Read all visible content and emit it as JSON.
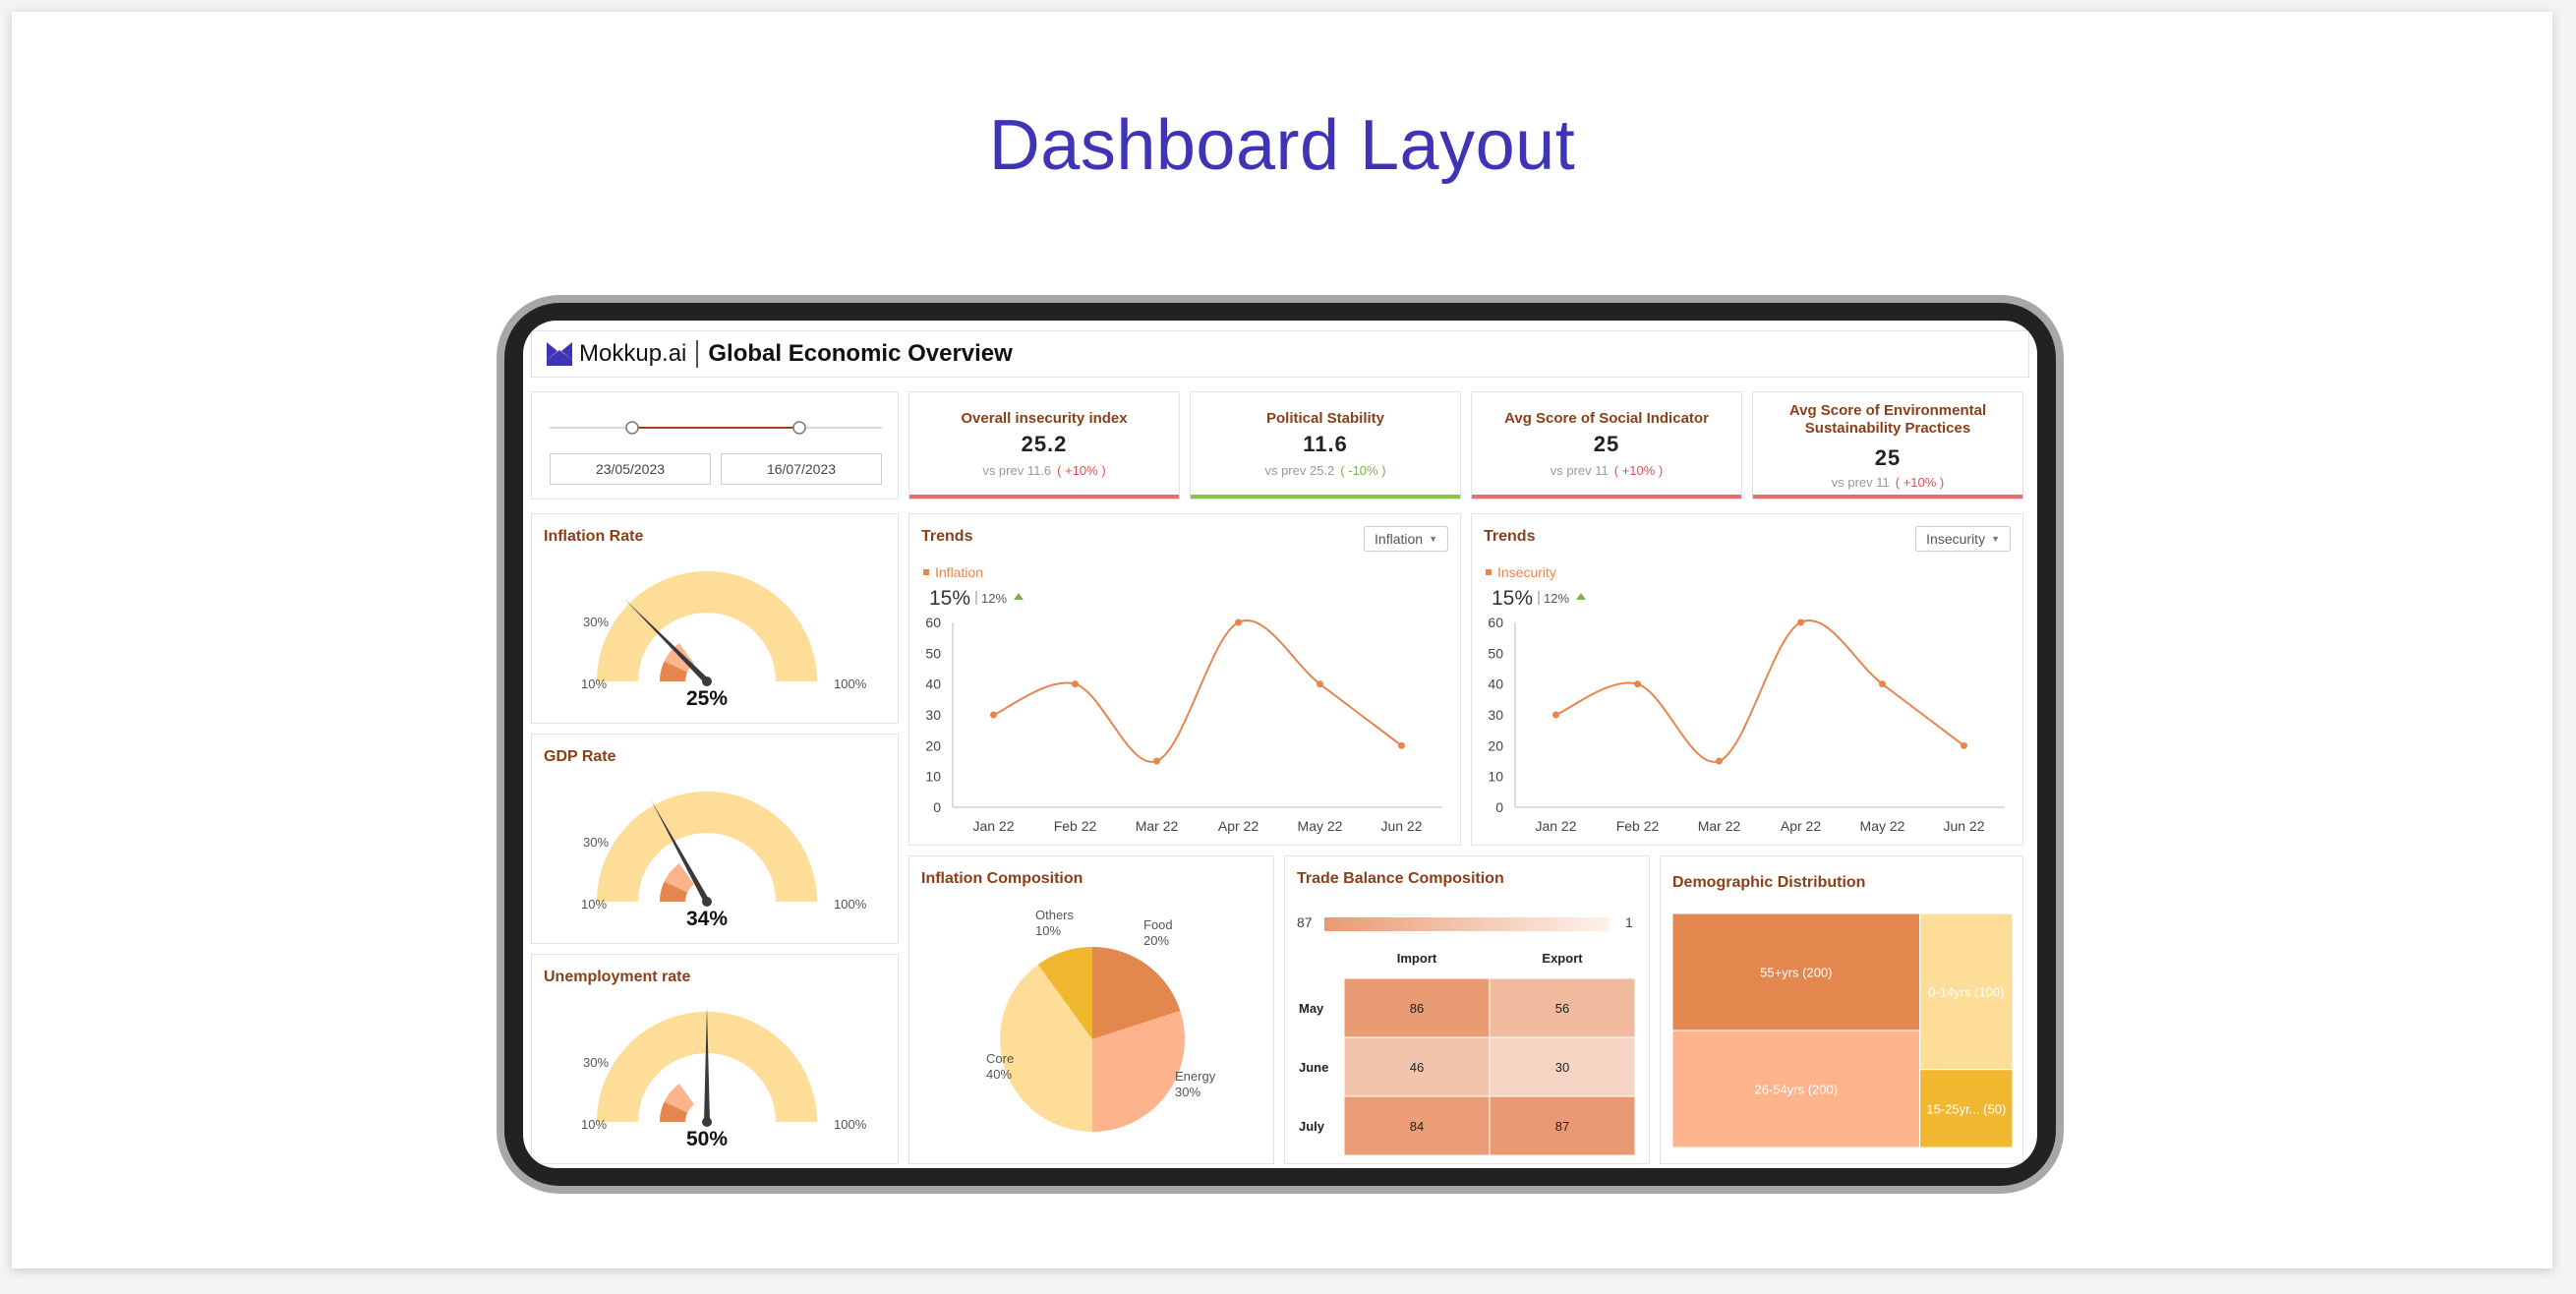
{
  "page": {
    "title": "Dashboard Layout"
  },
  "header": {
    "logo_text": "Mokkup.ai",
    "title": "Global Economic Overview"
  },
  "date_range": {
    "start": "23/05/2023",
    "end": "16/07/2023"
  },
  "kpis": [
    {
      "label": "Overall insecurity index",
      "value": "25.2",
      "prev": "vs prev 11.6",
      "change": "( +10% )",
      "change_color": "#e05050",
      "bar_color": "#e07070"
    },
    {
      "label": "Political Stability",
      "value": "11.6",
      "prev": "vs prev 25.2",
      "change": "( -10% )",
      "change_color": "#7cb342",
      "bar_color": "#8bc34a"
    },
    {
      "label": "Avg Score of Social Indicator",
      "value": "25",
      "prev": "vs prev 11",
      "change": "( +10% )",
      "change_color": "#e05050",
      "bar_color": "#e07070"
    },
    {
      "label": "Avg Score of Environmental Sustainability Practices",
      "value": "25",
      "prev": "vs prev 11",
      "change": "( +10% )",
      "change_color": "#e05050",
      "bar_color": "#e07070"
    }
  ],
  "gauges": [
    {
      "title": "Inflation Rate",
      "value_label": "25%",
      "value": 25,
      "min_label": "10%",
      "mid_label": "30%",
      "max_label": "100%"
    },
    {
      "title": "GDP Rate",
      "value_label": "34%",
      "value": 34,
      "min_label": "10%",
      "mid_label": "30%",
      "max_label": "100%"
    },
    {
      "title": "Unemployment rate",
      "value_label": "50%",
      "value": 50,
      "min_label": "10%",
      "mid_label": "30%",
      "max_label": "100%"
    }
  ],
  "trends": [
    {
      "title": "Trends",
      "dropdown": "Inflation",
      "legend": "Inflation",
      "big": "15%",
      "small": "12%"
    },
    {
      "title": "Trends",
      "dropdown": "Insecurity",
      "legend": "Insecurity",
      "big": "15%",
      "small": "12%"
    }
  ],
  "inflation_composition": {
    "title": "Inflation Composition"
  },
  "trade_balance": {
    "title": "Trade Balance Composition",
    "scale_max": "87",
    "scale_min": "1"
  },
  "demographic": {
    "title": "Demographic Distribution"
  },
  "colors": {
    "accent": "#3f33b6",
    "title_brown": "#8a3f18",
    "line": "#e8854d"
  },
  "chart_data": [
    {
      "type": "line",
      "series_name": "Inflation",
      "categories": [
        "Jan 22",
        "Feb 22",
        "Mar 22",
        "Apr 22",
        "May 22",
        "Jun 22"
      ],
      "values": [
        30,
        40,
        15,
        60,
        40,
        20
      ],
      "y_ticks": [
        0,
        10,
        20,
        30,
        40,
        50,
        60
      ],
      "ylim": [
        0,
        60
      ]
    },
    {
      "type": "line",
      "series_name": "Insecurity",
      "categories": [
        "Jan 22",
        "Feb 22",
        "Mar 22",
        "Apr 22",
        "May 22",
        "Jun 22"
      ],
      "values": [
        30,
        40,
        15,
        60,
        40,
        20
      ],
      "y_ticks": [
        0,
        10,
        20,
        30,
        40,
        50,
        60
      ],
      "ylim": [
        0,
        60
      ]
    },
    {
      "type": "pie",
      "slices": [
        {
          "label": "Food",
          "pct_label": "20%",
          "value": 20,
          "color": "#e4874f"
        },
        {
          "label": "Energy",
          "pct_label": "30%",
          "value": 30,
          "color": "#fdb38c"
        },
        {
          "label": "Core",
          "pct_label": "40%",
          "value": 40,
          "color": "#fedd98"
        },
        {
          "label": "Others",
          "pct_label": "10%",
          "value": 10,
          "color": "#f1b82f"
        }
      ]
    },
    {
      "type": "heatmap",
      "columns": [
        "Import",
        "Export"
      ],
      "rows": [
        "May",
        "June",
        "July"
      ],
      "values": [
        [
          86,
          56
        ],
        [
          46,
          30
        ],
        [
          84,
          87
        ]
      ],
      "scale": [
        1,
        87
      ]
    },
    {
      "type": "treemap",
      "items": [
        {
          "label": "55+yrs (200)",
          "value": 200,
          "color": "#e4874f"
        },
        {
          "label": "26-54yrs (200)",
          "value": 200,
          "color": "#fdb38c"
        },
        {
          "label": "0-14yrs (100)",
          "value": 100,
          "color": "#fedd98"
        },
        {
          "label": "15-25yr... (50)",
          "value": 50,
          "color": "#f1b82f"
        }
      ]
    }
  ]
}
